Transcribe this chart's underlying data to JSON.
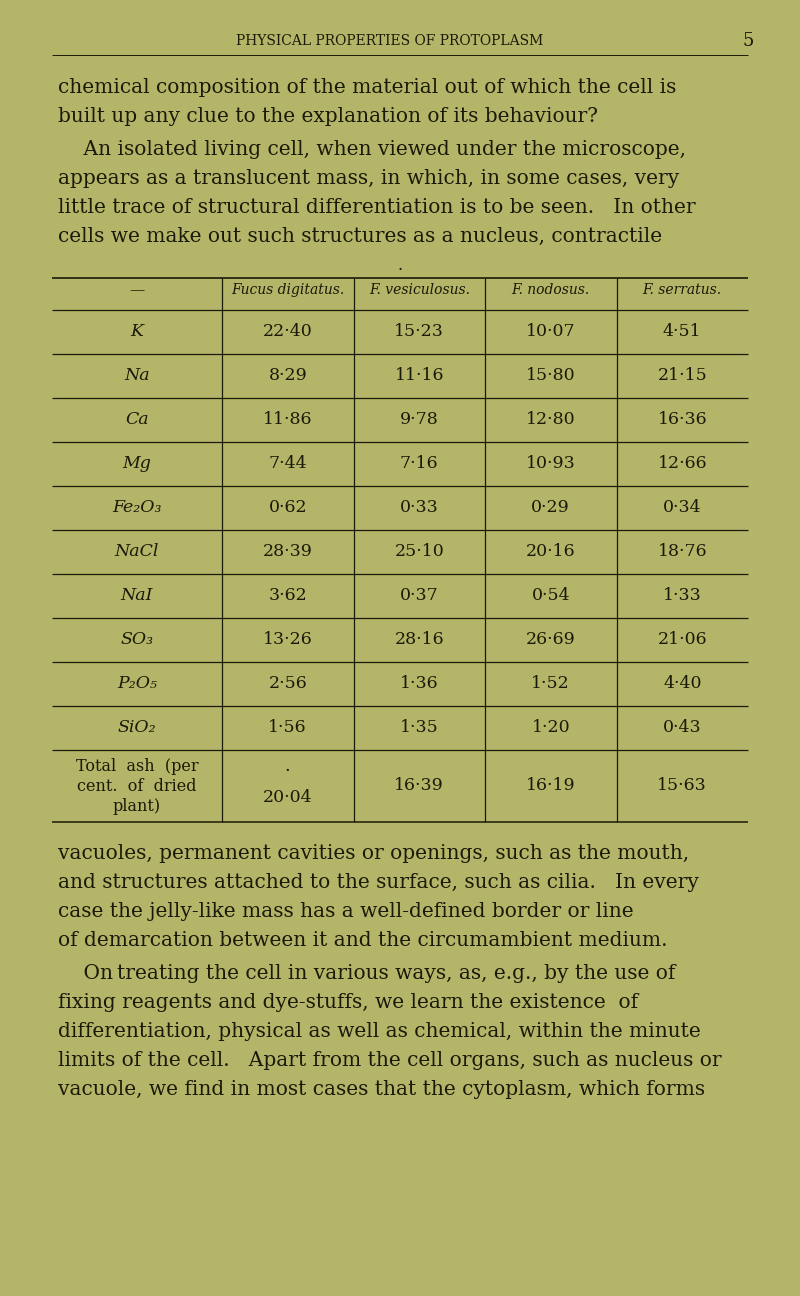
{
  "bg_color": "#b8b86a",
  "text_color": "#1a1a08",
  "header_text": "PHYSICAL PROPERTIES OF PROTOPLASM",
  "page_number": "5",
  "col_headers": [
    "—",
    "Fucus digitatus.",
    "F. vesiculosus.",
    "F. nodosus.",
    "F. serratus."
  ],
  "row_labels": [
    "K",
    "Na",
    "Ca",
    "Mg",
    "Fe₂O₃",
    "NaCl",
    "NaI",
    "SO₃",
    "P₂O₅",
    "SiO₂"
  ],
  "total_ash_label": [
    "Total  ash  (per",
    "cent.  of  dried",
    "plant)"
  ],
  "table_data": [
    [
      "22·40",
      "15·23",
      "10·07",
      "4·51"
    ],
    [
      "8·29",
      "11·16",
      "15·80",
      "21·15"
    ],
    [
      "11·86",
      "9·78",
      "12·80",
      "16·36"
    ],
    [
      "7·44",
      "7·16",
      "10·93",
      "12·66"
    ],
    [
      "0·62",
      "0·33",
      "0·29",
      "0·34"
    ],
    [
      "28·39",
      "25·10",
      "20·16",
      "18·76"
    ],
    [
      "3·62",
      "0·37",
      "0·54",
      "1·33"
    ],
    [
      "13·26",
      "28·16",
      "26·69",
      "21·06"
    ],
    [
      "2·56",
      "1·36",
      "1·52",
      "4·40"
    ],
    [
      "1·56",
      "1·35",
      "1·20",
      "0·43"
    ],
    [
      "·",
      "16·39",
      "16·19",
      "15·63"
    ]
  ],
  "total_ash_fd": "20·04",
  "p1_lines": [
    "chemical composition of the material out of which the cell is",
    "built up any clue to the explanation of its behaviour?"
  ],
  "p2_lines": [
    "    An isolated living cell, when viewed under the microscope,",
    "appears as a translucent mass, in which, in some cases, very",
    "little trace of structural differentiation is to be seen.   In other",
    "cells we make out such structures as a nucleus, contractile"
  ],
  "p3_lines": [
    "vacuoles, permanent cavities or openings, such as the mouth,",
    "and structures attached to the surface, such as cilia.   In every",
    "case the jelly-like mass has a well-defined border or line",
    "of demarcation between it and the circumambient medium."
  ],
  "p4_lines": [
    "    On’treating the cell in various ways, as, e.g., by the use of",
    "fixing reagents and dye-stuffs, we learn the existence  of",
    "differentiation, physical as well as chemical, within the minute",
    "limits of the cell.   Apart from the cell organs, such as nucleus or",
    "vacuole, we find in most cases that the cytoplasm, which forms"
  ]
}
